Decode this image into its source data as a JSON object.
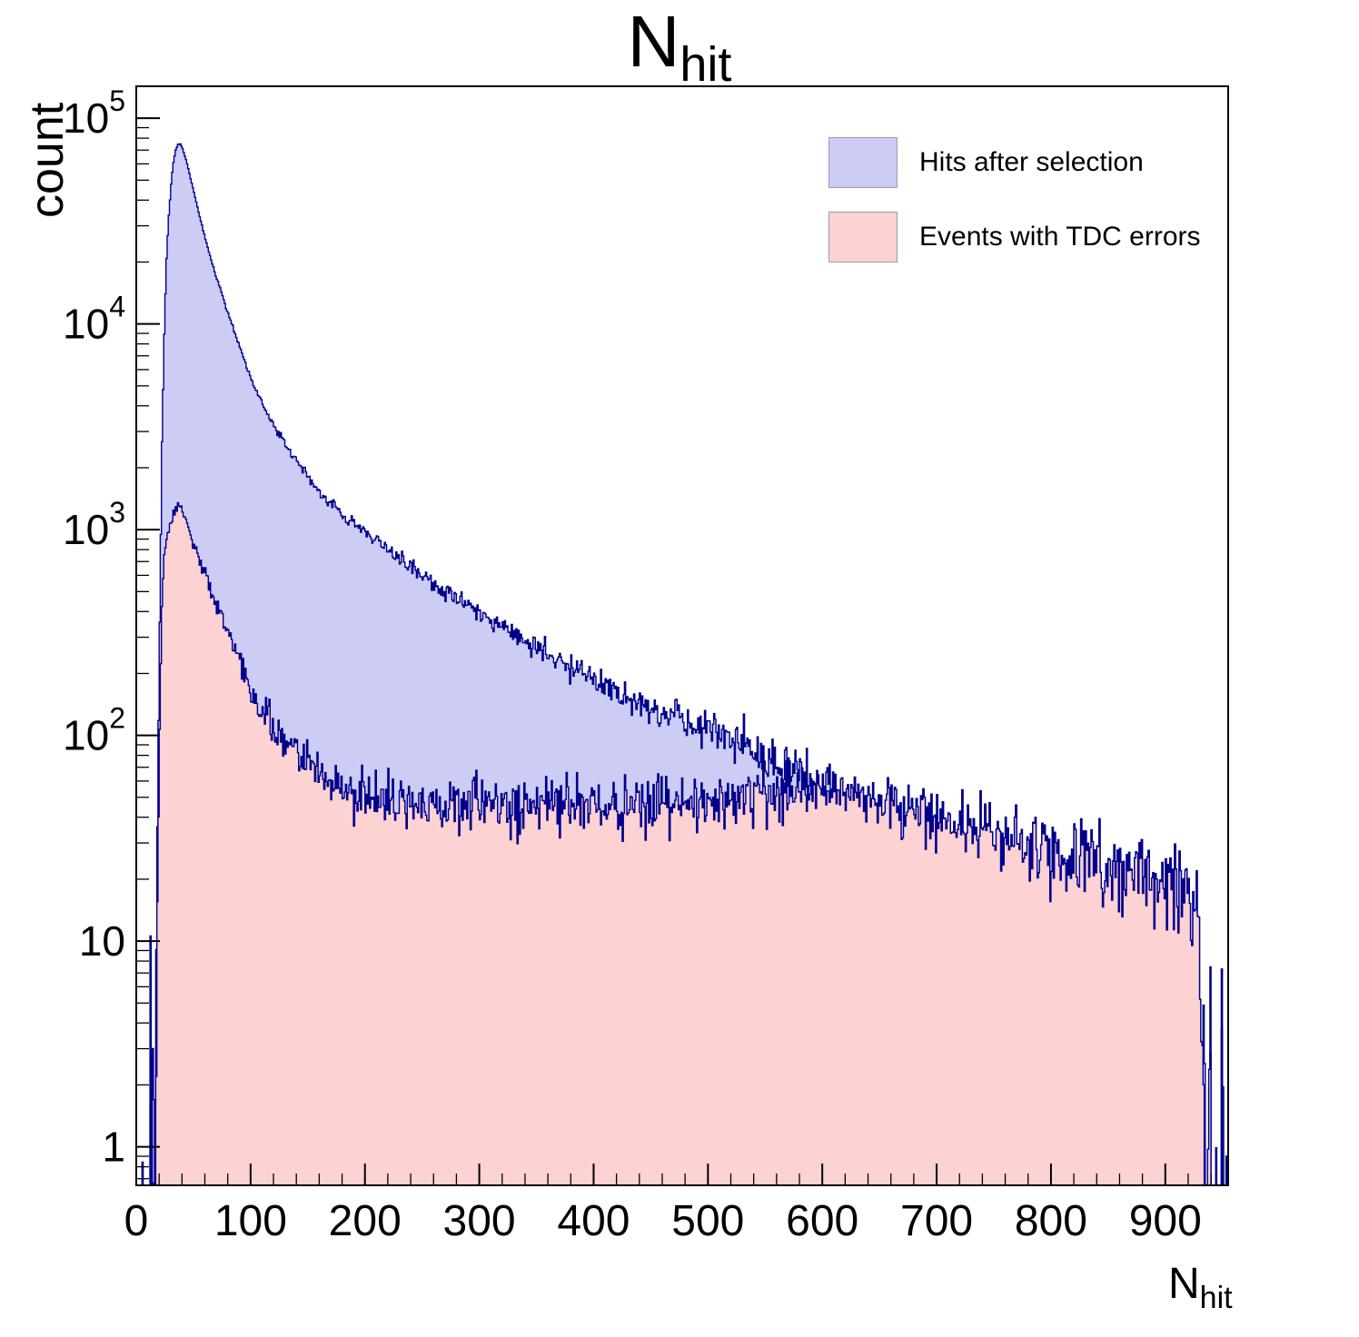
{
  "page": {
    "background": "#ffffff"
  },
  "chart_data": {
    "type": "area",
    "subtype": "overlaid-histograms-log-y",
    "title": {
      "main": "N",
      "sub": "hit"
    },
    "ylabel": "count",
    "xlabel": {
      "main": "N",
      "sub": "hit"
    },
    "x_range": [
      0,
      955
    ],
    "x_major_ticks": [
      0,
      100,
      200,
      300,
      400,
      500,
      600,
      700,
      800,
      900
    ],
    "x_minor_step": 20,
    "y_tick_exponents": [
      0,
      1,
      2,
      3,
      4,
      5
    ],
    "y_log_min": 0.65,
    "y_log_max": 143000,
    "grid": false,
    "frame_color": "#000000",
    "legend": {
      "position": "top-right"
    },
    "noise_model": {
      "type": "poisson-log10",
      "coeff": 0.434
    },
    "series": [
      {
        "name": "Hits after selection",
        "fill_color": "#ccccf5",
        "line_color": "#00008c",
        "noise_scale": 1.1,
        "seed": 1234567,
        "anchors": [
          [
            0,
            0.01
          ],
          [
            3,
            0.01
          ],
          [
            5,
            1.6
          ],
          [
            6,
            0.15
          ],
          [
            8,
            0.01
          ],
          [
            9,
            1.2
          ],
          [
            10,
            0.01
          ],
          [
            12,
            2.5
          ],
          [
            13,
            0.3
          ],
          [
            14,
            3
          ],
          [
            15,
            1.2
          ],
          [
            16,
            2
          ],
          [
            17,
            9
          ],
          [
            18,
            30
          ],
          [
            19,
            120
          ],
          [
            20,
            350
          ],
          [
            22,
            2600
          ],
          [
            24,
            9000
          ],
          [
            26,
            21000
          ],
          [
            28,
            34000
          ],
          [
            30,
            48000
          ],
          [
            32,
            61000
          ],
          [
            34,
            70000
          ],
          [
            36,
            74500
          ],
          [
            38,
            75000
          ],
          [
            40,
            71000
          ],
          [
            43,
            63000
          ],
          [
            46,
            54000
          ],
          [
            50,
            43500
          ],
          [
            54,
            35000
          ],
          [
            58,
            28500
          ],
          [
            63,
            22500
          ],
          [
            68,
            18000
          ],
          [
            74,
            14200
          ],
          [
            80,
            11200
          ],
          [
            87,
            8600
          ],
          [
            94,
            6700
          ],
          [
            100,
            5400
          ],
          [
            108,
            4300
          ],
          [
            116,
            3500
          ],
          [
            125,
            2850
          ],
          [
            135,
            2350
          ],
          [
            145,
            1950
          ],
          [
            157,
            1600
          ],
          [
            170,
            1330
          ],
          [
            185,
            1120
          ],
          [
            200,
            980
          ],
          [
            215,
            840
          ],
          [
            230,
            720
          ],
          [
            245,
            625
          ],
          [
            260,
            545
          ],
          [
            275,
            480
          ],
          [
            290,
            420
          ],
          [
            305,
            370
          ],
          [
            320,
            330
          ],
          [
            335,
            295
          ],
          [
            350,
            262
          ],
          [
            365,
            234
          ],
          [
            380,
            210
          ],
          [
            395,
            190
          ],
          [
            410,
            172
          ],
          [
            425,
            158
          ],
          [
            440,
            146
          ],
          [
            455,
            135
          ],
          [
            470,
            126
          ],
          [
            485,
            117
          ],
          [
            500,
            108
          ],
          [
            515,
            98
          ],
          [
            530,
            89
          ],
          [
            545,
            81
          ],
          [
            560,
            74
          ],
          [
            575,
            68
          ],
          [
            590,
            62
          ],
          [
            605,
            58
          ],
          [
            620,
            54
          ],
          [
            635,
            51
          ],
          [
            650,
            48
          ],
          [
            665,
            45
          ],
          [
            680,
            42
          ],
          [
            695,
            40
          ],
          [
            710,
            38
          ],
          [
            725,
            36
          ],
          [
            740,
            34
          ],
          [
            755,
            32
          ],
          [
            770,
            30
          ],
          [
            785,
            28.5
          ],
          [
            800,
            27
          ],
          [
            815,
            25.5
          ],
          [
            830,
            24
          ],
          [
            845,
            23
          ],
          [
            860,
            22
          ],
          [
            875,
            21
          ],
          [
            890,
            20
          ],
          [
            905,
            19
          ],
          [
            915,
            17.5
          ],
          [
            922,
            15.5
          ],
          [
            927,
            13
          ],
          [
            930,
            9
          ],
          [
            932,
            4
          ],
          [
            933.5,
            1.5
          ],
          [
            935,
            0.25
          ],
          [
            937,
            0.2
          ],
          [
            939,
            2.2
          ],
          [
            940.5,
            0.25
          ],
          [
            943,
            0.2
          ],
          [
            944.5,
            1.3
          ],
          [
            946,
            0.2
          ],
          [
            948,
            0.2
          ],
          [
            949.5,
            5
          ],
          [
            951,
            0.2
          ],
          [
            953,
            1.0
          ],
          [
            954,
            0.2
          ],
          [
            955,
            0.15
          ]
        ]
      },
      {
        "name": "Events with TDC errors",
        "fill_color": "#fcd2d2",
        "line_color": "#00008c",
        "noise_scale": 1.1,
        "seed": 424242,
        "anchors": [
          [
            0,
            0.01
          ],
          [
            4,
            0.01
          ],
          [
            5,
            1.1
          ],
          [
            6,
            0.12
          ],
          [
            8,
            0.01
          ],
          [
            9,
            0.8
          ],
          [
            10,
            0.01
          ],
          [
            12,
            1.6
          ],
          [
            13,
            0.2
          ],
          [
            14,
            2
          ],
          [
            15,
            0.9
          ],
          [
            16,
            1.3
          ],
          [
            17,
            4
          ],
          [
            18,
            12
          ],
          [
            19,
            45
          ],
          [
            20,
            120
          ],
          [
            22,
            430
          ],
          [
            24,
            700
          ],
          [
            26,
            880
          ],
          [
            28,
            1000
          ],
          [
            30,
            1100
          ],
          [
            32,
            1200
          ],
          [
            34,
            1280
          ],
          [
            36,
            1310
          ],
          [
            38,
            1300
          ],
          [
            40,
            1240
          ],
          [
            43,
            1130
          ],
          [
            46,
            1000
          ],
          [
            50,
            860
          ],
          [
            54,
            740
          ],
          [
            58,
            640
          ],
          [
            63,
            540
          ],
          [
            68,
            455
          ],
          [
            74,
            380
          ],
          [
            80,
            315
          ],
          [
            87,
            250
          ],
          [
            94,
            200
          ],
          [
            100,
            165
          ],
          [
            108,
            135
          ],
          [
            116,
            113
          ],
          [
            125,
            97
          ],
          [
            135,
            85
          ],
          [
            145,
            76
          ],
          [
            157,
            68
          ],
          [
            170,
            61
          ],
          [
            185,
            56
          ],
          [
            200,
            52
          ],
          [
            215,
            49
          ],
          [
            230,
            47
          ],
          [
            245,
            45.5
          ],
          [
            260,
            44.5
          ],
          [
            275,
            44
          ],
          [
            290,
            44
          ],
          [
            305,
            44
          ],
          [
            320,
            44.5
          ],
          [
            335,
            45
          ],
          [
            350,
            45.5
          ],
          [
            365,
            46
          ],
          [
            380,
            46
          ],
          [
            395,
            45.5
          ],
          [
            410,
            45.5
          ],
          [
            425,
            46
          ],
          [
            440,
            46
          ],
          [
            455,
            46.5
          ],
          [
            470,
            47
          ],
          [
            485,
            47.5
          ],
          [
            500,
            48.5
          ],
          [
            515,
            49.5
          ],
          [
            530,
            50.5
          ],
          [
            545,
            51.5
          ],
          [
            560,
            52.5
          ],
          [
            575,
            53.5
          ],
          [
            590,
            54.5
          ],
          [
            605,
            55
          ],
          [
            620,
            54
          ],
          [
            635,
            51
          ],
          [
            650,
            48
          ],
          [
            665,
            45
          ],
          [
            680,
            42
          ],
          [
            695,
            40
          ],
          [
            710,
            38
          ],
          [
            725,
            36
          ],
          [
            740,
            34
          ],
          [
            755,
            32
          ],
          [
            770,
            30
          ],
          [
            785,
            28.5
          ],
          [
            800,
            27
          ],
          [
            815,
            25.5
          ],
          [
            830,
            24
          ],
          [
            845,
            23
          ],
          [
            860,
            22
          ],
          [
            875,
            21
          ],
          [
            890,
            20
          ],
          [
            905,
            19
          ],
          [
            915,
            17.5
          ],
          [
            922,
            15.5
          ],
          [
            927,
            13
          ],
          [
            930,
            9
          ],
          [
            932,
            4
          ],
          [
            933.5,
            1.2
          ],
          [
            935,
            0.2
          ],
          [
            939,
            1.6
          ],
          [
            940.5,
            0.2
          ],
          [
            944.5,
            1.0
          ],
          [
            946,
            0.18
          ],
          [
            949.5,
            2
          ],
          [
            951,
            0.18
          ],
          [
            953,
            0.8
          ],
          [
            955,
            0.12
          ]
        ]
      }
    ]
  }
}
